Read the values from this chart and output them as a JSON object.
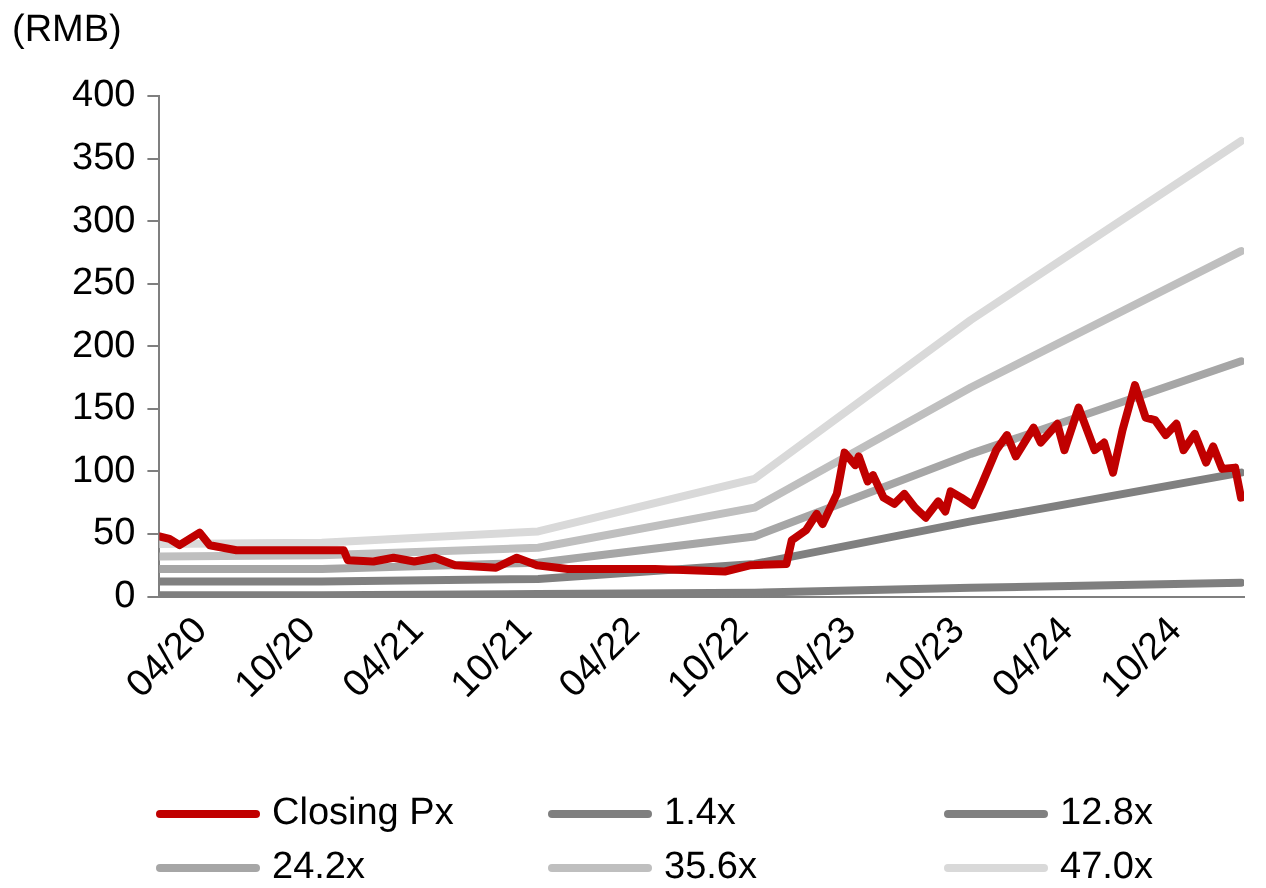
{
  "chart_data": {
    "type": "line",
    "ylabel": "(RMB)",
    "ylim": [
      0,
      400
    ],
    "yticks": [
      0,
      50,
      100,
      150,
      200,
      250,
      300,
      350,
      400
    ],
    "xlim": [
      "2020-04-01",
      "2025-04-05"
    ],
    "xticks": [
      {
        "value": "2020-04-01",
        "label": "04/20"
      },
      {
        "value": "2020-10-01",
        "label": "10/20"
      },
      {
        "value": "2021-04-01",
        "label": "04/21"
      },
      {
        "value": "2021-10-01",
        "label": "10/21"
      },
      {
        "value": "2022-04-01",
        "label": "04/22"
      },
      {
        "value": "2022-10-01",
        "label": "10/22"
      },
      {
        "value": "2023-04-01",
        "label": "04/23"
      },
      {
        "value": "2023-10-01",
        "label": "10/23"
      },
      {
        "value": "2024-04-01",
        "label": "04/24"
      },
      {
        "value": "2024-10-01",
        "label": "10/24"
      }
    ],
    "grid": false,
    "legend": "bottom",
    "marker": "none",
    "line_style": "solid",
    "series": [
      {
        "name": "Closing Px",
        "color": "#c00000",
        "x": [
          "2020-04-01",
          "2020-04-18",
          "2020-05-05",
          "2020-06-08",
          "2020-06-25",
          "2020-08-09",
          "2021-02-06",
          "2021-02-13",
          "2021-03-28",
          "2021-05-01",
          "2021-06-05",
          "2021-07-10",
          "2021-08-13",
          "2021-10-21",
          "2021-11-25",
          "2021-12-29",
          "2022-02-19",
          "2022-03-26",
          "2022-07-16",
          "2022-11-11",
          "2022-12-25",
          "2023-02-23",
          "2023-03-04",
          "2023-03-28",
          "2023-04-15",
          "2023-04-25",
          "2023-05-19",
          "2023-06-01",
          "2023-06-19",
          "2023-06-25",
          "2023-07-10",
          "2023-07-19",
          "2023-08-06",
          "2023-08-24",
          "2023-09-10",
          "2023-09-28",
          "2023-10-16",
          "2023-11-06",
          "2023-11-18",
          "2023-11-27",
          "2023-12-15",
          "2024-01-03",
          "2024-01-18",
          "2024-02-12",
          "2024-03-01",
          "2024-03-16",
          "2024-04-15",
          "2024-04-27",
          "2024-05-25",
          "2024-06-06",
          "2024-06-30",
          "2024-07-27",
          "2024-08-12",
          "2024-08-27",
          "2024-09-12",
          "2024-10-03",
          "2024-10-21",
          "2024-11-06",
          "2024-11-24",
          "2024-12-12",
          "2024-12-24",
          "2025-01-12",
          "2025-01-31",
          "2025-02-12",
          "2025-02-27",
          "2025-03-21",
          "2025-03-31"
        ],
        "values": [
          48,
          46,
          41,
          51,
          41,
          37,
          37,
          29,
          28,
          31,
          28,
          31,
          25,
          23,
          31,
          25,
          22,
          22,
          22,
          20,
          25,
          26,
          45,
          53,
          66,
          58,
          82,
          115,
          105,
          112,
          92,
          97,
          79,
          74,
          82,
          71,
          63,
          76,
          68,
          84,
          79,
          73,
          89,
          117,
          129,
          112,
          135,
          123,
          138,
          117,
          151,
          117,
          123,
          99,
          133,
          169,
          143,
          141,
          129,
          138,
          117,
          130,
          107,
          120,
          102,
          103,
          79
        ]
      },
      {
        "name": "1.4x",
        "color": "#7f7f7f",
        "x": [
          "2020-04-01",
          "2020-12-31",
          "2021-12-31",
          "2022-12-31",
          "2023-12-31",
          "2025-03-31"
        ],
        "values": [
          1,
          1,
          2,
          3,
          7,
          11
        ]
      },
      {
        "name": "12.8x",
        "color": "#808080",
        "x": [
          "2020-04-01",
          "2020-12-31",
          "2021-12-31",
          "2022-12-31",
          "2023-12-31",
          "2025-03-31"
        ],
        "values": [
          12,
          12,
          14,
          26,
          60,
          99
        ]
      },
      {
        "name": "24.2x",
        "color": "#a6a6a6",
        "x": [
          "2020-04-01",
          "2020-12-31",
          "2021-12-31",
          "2022-12-31",
          "2023-12-31",
          "2025-03-31"
        ],
        "values": [
          22,
          22,
          27,
          48,
          114,
          188
        ]
      },
      {
        "name": "35.6x",
        "color": "#bfbfbf",
        "x": [
          "2020-04-01",
          "2020-12-31",
          "2021-12-31",
          "2022-12-31",
          "2023-12-31",
          "2025-03-31"
        ],
        "values": [
          32,
          33,
          39,
          71,
          167,
          276
        ]
      },
      {
        "name": "47.0x",
        "color": "#d9d9d9",
        "x": [
          "2020-04-01",
          "2020-12-31",
          "2021-12-31",
          "2022-12-31",
          "2023-12-31",
          "2025-03-31"
        ],
        "values": [
          42,
          43,
          52,
          94,
          221,
          364
        ]
      }
    ]
  }
}
